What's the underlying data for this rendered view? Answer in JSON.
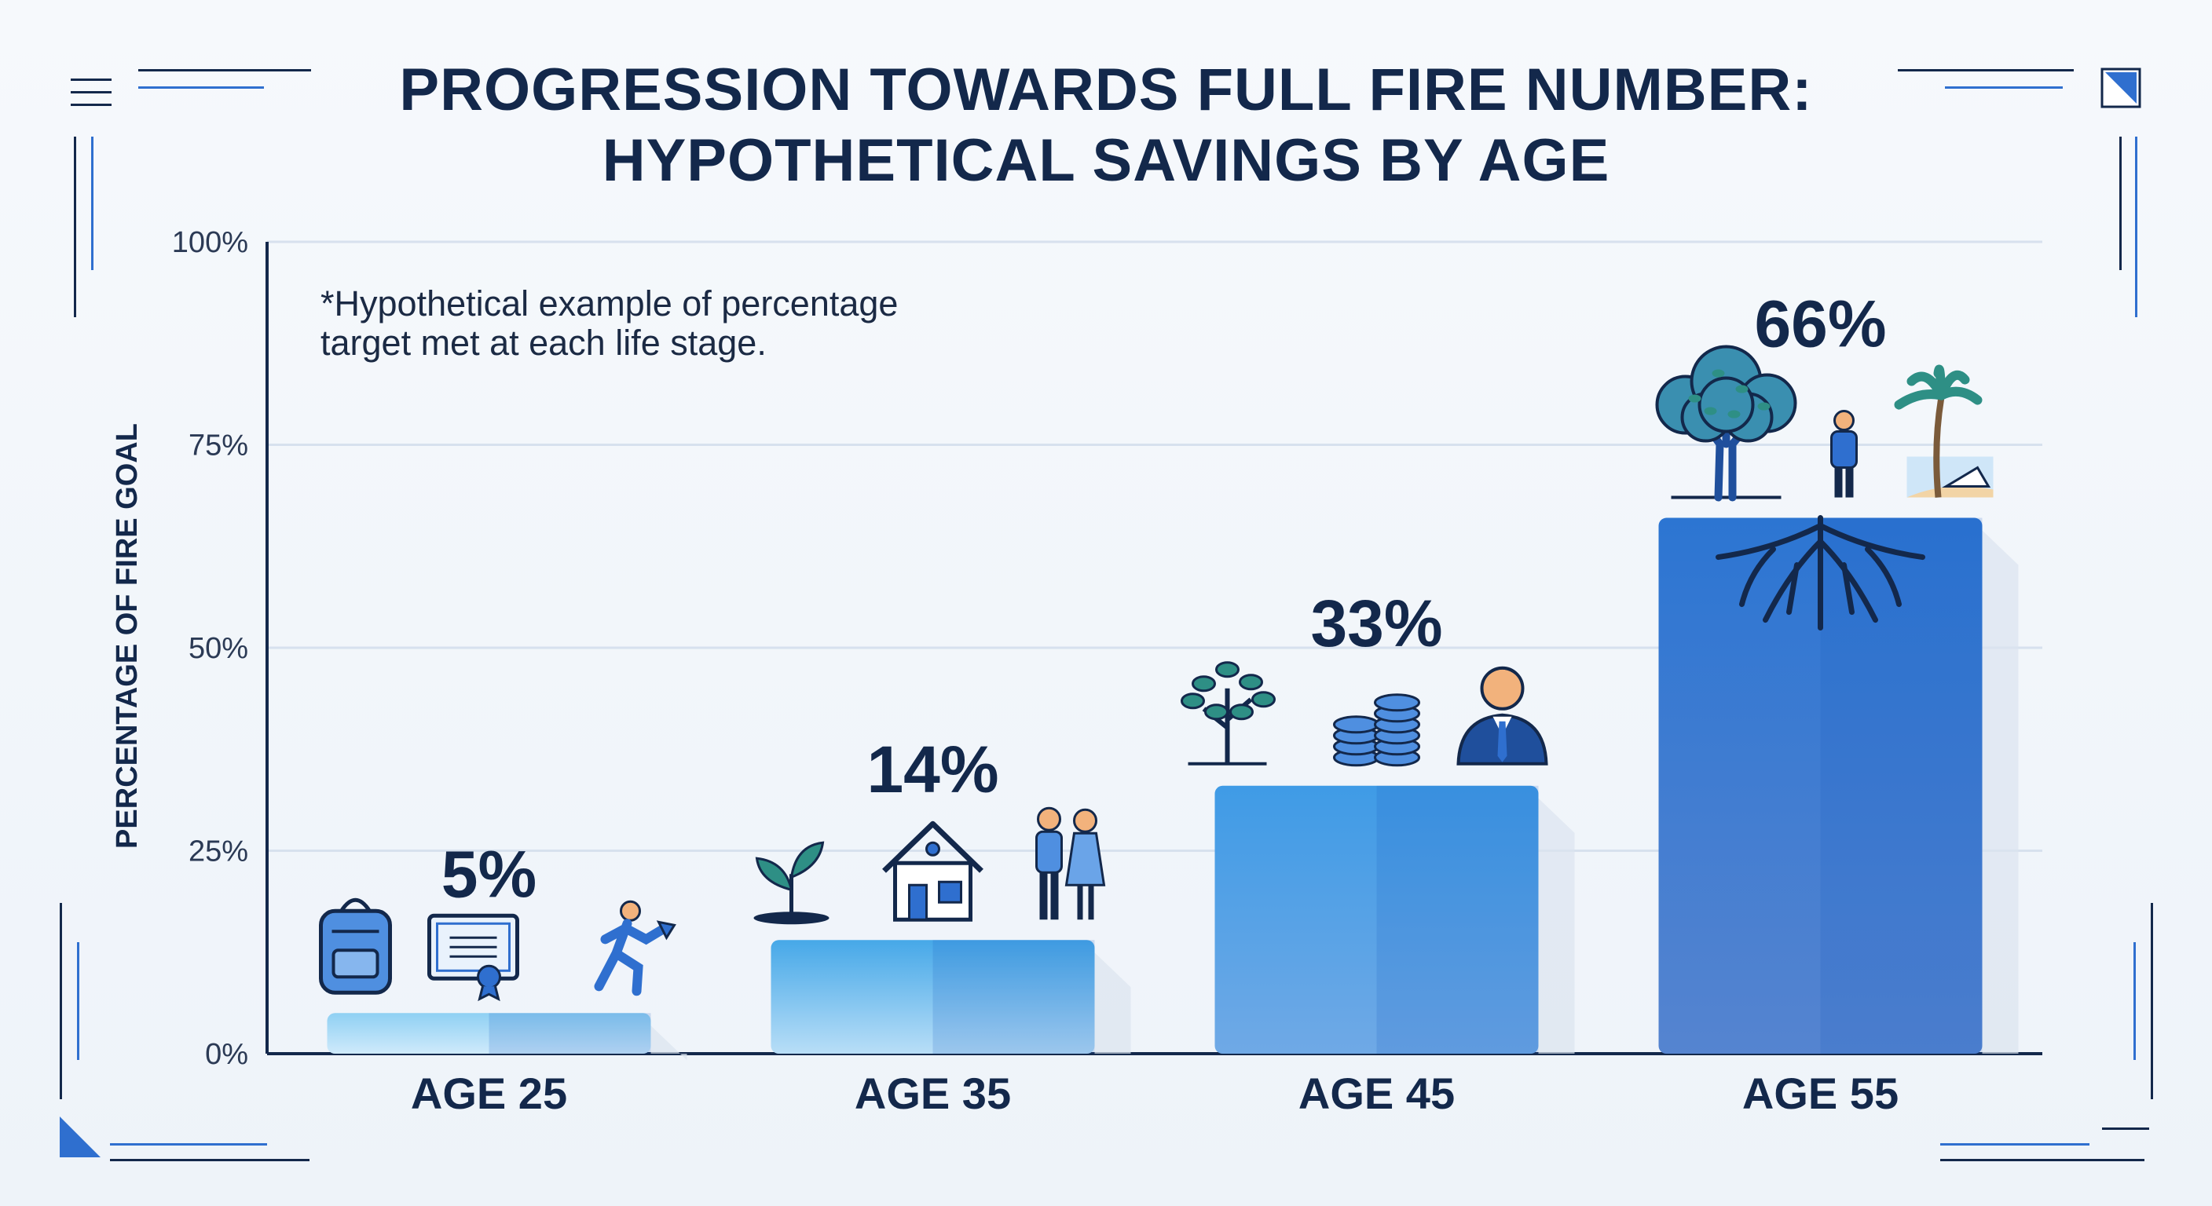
{
  "chart_data": {
    "type": "bar",
    "title": "PROGRESSION TOWARDS FULL FIRE NUMBER: HYPOTHETICAL SAVINGS BY AGE",
    "title_lines": [
      "PROGRESSION TOWARDS FULL FIRE NUMBER:",
      "HYPOTHETICAL SAVINGS BY AGE"
    ],
    "annotation_lines": [
      "*Hypothetical example of percentage",
      "target met at each life stage."
    ],
    "ylabel": "PERCENTAGE OF FIRE GOAL",
    "xlabel": "",
    "ylim": [
      0,
      100
    ],
    "yticks": [
      0,
      25,
      50,
      75,
      100
    ],
    "ytick_labels": [
      "0%",
      "25%",
      "50%",
      "75%",
      "100%"
    ],
    "categories": [
      "AGE 25",
      "AGE 35",
      "AGE 45",
      "AGE 55"
    ],
    "values": [
      5,
      14,
      33,
      66
    ],
    "value_labels": [
      "5%",
      "14%",
      "33%",
      "66%"
    ],
    "icons": [
      [
        "backpack-icon",
        "diploma-icon",
        "running-person-icon"
      ],
      [
        "sprout-icon",
        "house-icon",
        "couple-icon"
      ],
      [
        "sapling-icon",
        "coin-stack-icon",
        "businessman-icon"
      ],
      [
        "tree-icon",
        "person-icon",
        "palm-beach-icon"
      ]
    ],
    "grid": true,
    "legend": "none",
    "colors": {
      "bar_top": [
        "#8fd0f3",
        "#46a8e8",
        "#3f9be6",
        "#2c75d2"
      ],
      "bar_bottom": [
        "#cfeafb",
        "#b8def7",
        "#6fa9e6",
        "#5584d0"
      ],
      "text_dark": "#13284b",
      "icon_blue": "#2f6fcf",
      "icon_teal": "#2e8f85"
    }
  }
}
